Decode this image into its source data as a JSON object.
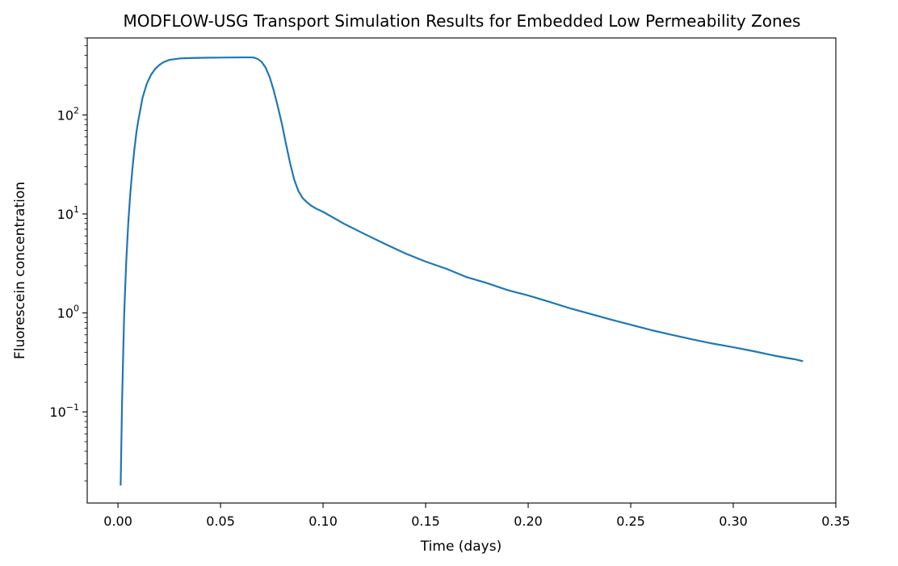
{
  "chart_data": {
    "type": "line",
    "title": "MODFLOW-USG Transport Simulation Results for Embedded Low Permeability Zones",
    "xlabel": "Time (days)",
    "ylabel": "Fluorescein concentration",
    "xlim": [
      -0.015,
      0.35
    ],
    "ylim": [
      0.012,
      600
    ],
    "yscale": "log",
    "grid": false,
    "legend": "none",
    "x_ticks": [
      {
        "value": 0.0,
        "label": "0.00"
      },
      {
        "value": 0.05,
        "label": "0.05"
      },
      {
        "value": 0.1,
        "label": "0.10"
      },
      {
        "value": 0.15,
        "label": "0.15"
      },
      {
        "value": 0.2,
        "label": "0.20"
      },
      {
        "value": 0.25,
        "label": "0.25"
      },
      {
        "value": 0.3,
        "label": "0.30"
      },
      {
        "value": 0.35,
        "label": "0.35"
      }
    ],
    "y_ticks": [
      {
        "value": 0.1,
        "base": "10",
        "exp": "−1"
      },
      {
        "value": 1,
        "base": "10",
        "exp": "0"
      },
      {
        "value": 10,
        "base": "10",
        "exp": "1"
      },
      {
        "value": 100,
        "base": "10",
        "exp": "2"
      }
    ],
    "series": [
      {
        "color": "#1f77b4",
        "x": [
          0.0013,
          0.002,
          0.003,
          0.004,
          0.005,
          0.006,
          0.007,
          0.008,
          0.009,
          0.01,
          0.012,
          0.014,
          0.016,
          0.018,
          0.02,
          0.022,
          0.025,
          0.03,
          0.035,
          0.04,
          0.05,
          0.06,
          0.064,
          0.066,
          0.068,
          0.07,
          0.072,
          0.074,
          0.076,
          0.078,
          0.08,
          0.082,
          0.084,
          0.086,
          0.088,
          0.09,
          0.092,
          0.094,
          0.097,
          0.1,
          0.11,
          0.12,
          0.13,
          0.14,
          0.15,
          0.16,
          0.17,
          0.18,
          0.19,
          0.2,
          0.21,
          0.22,
          0.23,
          0.24,
          0.25,
          0.26,
          0.27,
          0.28,
          0.29,
          0.3,
          0.31,
          0.32,
          0.33,
          0.334
        ],
        "y": [
          0.018,
          0.13,
          0.95,
          3.2,
          8.0,
          16,
          28,
          45,
          67,
          90,
          150,
          205,
          252,
          290,
          318,
          340,
          360,
          372,
          376,
          378,
          380,
          382,
          382,
          381,
          370,
          345,
          300,
          240,
          175,
          120,
          80,
          50,
          32,
          22,
          17,
          14.5,
          13.2,
          12.2,
          11.2,
          10.5,
          8.0,
          6.3,
          5.0,
          4.0,
          3.3,
          2.8,
          2.3,
          2.0,
          1.7,
          1.5,
          1.3,
          1.12,
          0.98,
          0.86,
          0.76,
          0.67,
          0.6,
          0.54,
          0.49,
          0.45,
          0.41,
          0.37,
          0.34,
          0.325
        ]
      }
    ]
  }
}
